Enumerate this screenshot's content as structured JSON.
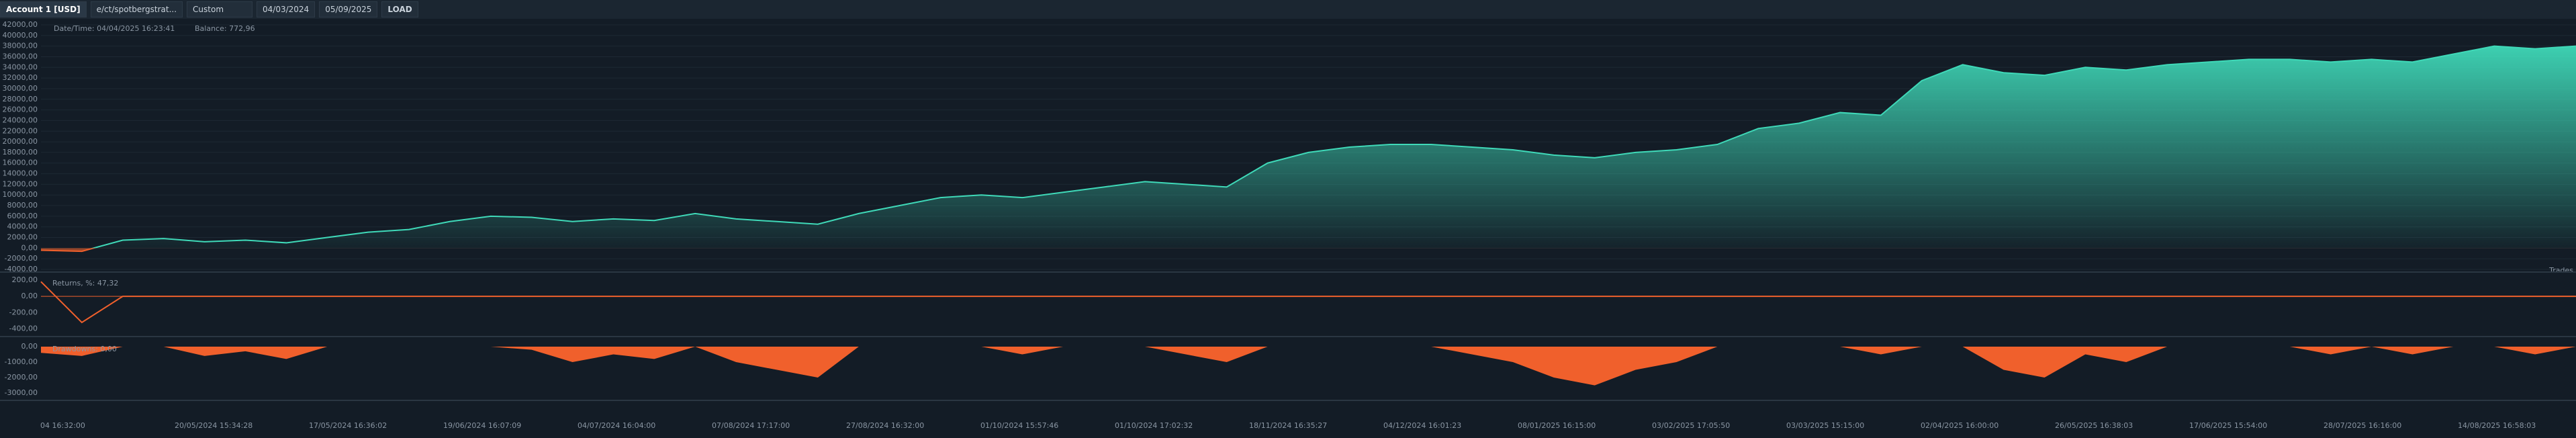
{
  "toolbar": {
    "account": "Account 1 [USD]",
    "strategy": "e/ct/spotbergstrat...",
    "period": "Custom",
    "from": "04/03/2024",
    "to": "05/09/2025",
    "load": "LOAD"
  },
  "chart_data": [
    {
      "type": "area",
      "title": "Balance",
      "annotation_time": "Date/Time: 04/04/2025 16:23:41",
      "annotation_value": "Balance: 772,96",
      "side_label": "Trades",
      "color": "#3fd9b8",
      "negative_color": "#f0602c",
      "values": [
        -400,
        -600,
        1500,
        1800,
        1200,
        1500,
        1000,
        2000,
        3000,
        3500,
        5000,
        6000,
        5800,
        5000,
        5500,
        5200,
        6500,
        5500,
        5000,
        4500,
        6500,
        8000,
        9500,
        10000,
        9500,
        10500,
        11500,
        12500,
        12000,
        11500,
        16000,
        18000,
        19000,
        19500,
        19500,
        19000,
        18500,
        17500,
        17000,
        18000,
        18500,
        19500,
        22500,
        23500,
        25500,
        25000,
        31500,
        34500,
        33000,
        32500,
        34000,
        33500,
        34500,
        35000,
        35500,
        35500,
        35000,
        35500,
        35000,
        36500,
        38000,
        37500,
        38000
      ],
      "ylim": [
        -4000,
        42000
      ],
      "yticks": [
        {
          "value": -4000,
          "label": "-4000,00"
        },
        {
          "value": -2000,
          "label": "-2000,00"
        },
        {
          "value": 0,
          "label": "0,00"
        },
        {
          "value": 2000,
          "label": "2000,00"
        },
        {
          "value": 4000,
          "label": "4000,00"
        },
        {
          "value": 6000,
          "label": "6000,00"
        },
        {
          "value": 8000,
          "label": "8000,00"
        },
        {
          "value": 10000,
          "label": "10000,00"
        },
        {
          "value": 12000,
          "label": "12000,00"
        },
        {
          "value": 14000,
          "label": "14000,00"
        },
        {
          "value": 16000,
          "label": "16000,00"
        },
        {
          "value": 18000,
          "label": "18000,00"
        },
        {
          "value": 20000,
          "label": "20000,00"
        },
        {
          "value": 22000,
          "label": "22000,00"
        },
        {
          "value": 24000,
          "label": "24000,00"
        },
        {
          "value": 26000,
          "label": "26000,00"
        },
        {
          "value": 28000,
          "label": "28000,00"
        },
        {
          "value": 30000,
          "label": "30000,00"
        },
        {
          "value": 32000,
          "label": "32000,00"
        },
        {
          "value": 34000,
          "label": "34000,00"
        },
        {
          "value": 36000,
          "label": "36000,00"
        },
        {
          "value": 38000,
          "label": "38000,00"
        },
        {
          "value": 40000,
          "label": "40000,00"
        },
        {
          "value": 42000,
          "label": "42000,00"
        }
      ],
      "grid": true
    },
    {
      "type": "line",
      "title": "Returns, %: 47,32",
      "color": "#f0602c",
      "values": [
        180,
        -320,
        0,
        0,
        0,
        0,
        0,
        0,
        0,
        0,
        0,
        0,
        0,
        0,
        0,
        0,
        0,
        0,
        0,
        0,
        0,
        0,
        0,
        0,
        0,
        0,
        0,
        0,
        0,
        0,
        0,
        0,
        0,
        0,
        0,
        0,
        0,
        0,
        0,
        0,
        0,
        0,
        0,
        0,
        0,
        0,
        0,
        0,
        0,
        0,
        0,
        0,
        0,
        0,
        0,
        0,
        0,
        0,
        0,
        0,
        0,
        0,
        0
      ],
      "ylim": [
        -460,
        240
      ],
      "yticks": [
        {
          "value": -400,
          "label": "-400,00"
        },
        {
          "value": -200,
          "label": "-200,00"
        },
        {
          "value": 0,
          "label": "0,00"
        },
        {
          "value": 200,
          "label": "200,00"
        }
      ]
    },
    {
      "type": "area",
      "title": "Drawdowns: 0,00",
      "color": "#f0602c",
      "values": [
        -400,
        -600,
        0,
        0,
        -600,
        -300,
        -800,
        0,
        0,
        0,
        0,
        0,
        -200,
        -1000,
        -500,
        -800,
        0,
        -1000,
        -1500,
        -2000,
        0,
        0,
        0,
        0,
        -500,
        0,
        0,
        0,
        -500,
        -1000,
        0,
        0,
        0,
        0,
        0,
        -500,
        -1000,
        -2000,
        -2500,
        -1500,
        -1000,
        0,
        0,
        0,
        0,
        -500,
        0,
        0,
        -1500,
        -2000,
        -500,
        -1000,
        0,
        0,
        0,
        0,
        -500,
        0,
        -500,
        0,
        0,
        -500,
        0
      ],
      "ylim": [
        -3300,
        0
      ],
      "yticks": [
        {
          "value": -3000,
          "label": "-3000,00"
        },
        {
          "value": -2000,
          "label": "-2000,00"
        },
        {
          "value": -1000,
          "label": "-1000,00"
        },
        {
          "value": 0,
          "label": "0,00"
        }
      ],
      "xtick_labels": [
        "04 16:32:00",
        "20/05/2024 15:34:28",
        "17/05/2024 16:36:02",
        "19/06/2024 16:07:09",
        "04/07/2024 16:04:00",
        "07/08/2024 17:17:00",
        "27/08/2024 16:32:00",
        "01/10/2024 15:57:46",
        "01/10/2024 17:02:32",
        "18/11/2024 16:35:27",
        "04/12/2024 16:01:23",
        "08/01/2025 16:15:00",
        "03/02/2025 17:05:50",
        "03/03/2025 15:15:00",
        "02/04/2025 16:00:00",
        "26/05/2025 16:38:03",
        "17/06/2025 15:54:00",
        "28/07/2025 16:16:00",
        "14/08/2025 16:58:03"
      ]
    }
  ]
}
